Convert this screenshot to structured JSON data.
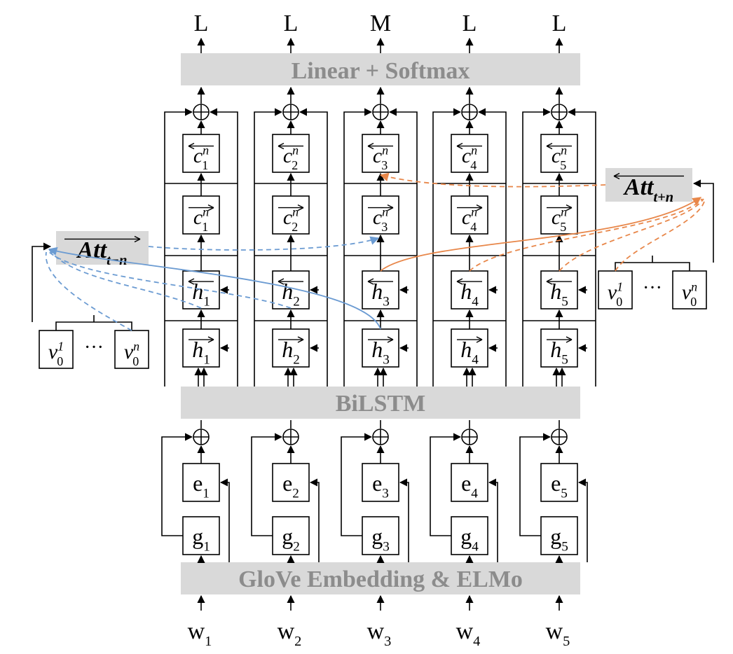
{
  "outputs": [
    "L",
    "L",
    "M",
    "L",
    "L"
  ],
  "inputs": [
    {
      "base": "w",
      "sub": "1"
    },
    {
      "base": "w",
      "sub": "2"
    },
    {
      "base": "w",
      "sub": "3"
    },
    {
      "base": "w",
      "sub": "4"
    },
    {
      "base": "w",
      "sub": "5"
    }
  ],
  "layers": {
    "softmax": "Linear + Softmax",
    "bilstm": "BiLSTM",
    "embedding": "GloVe Embedding & ELMo"
  },
  "attention": {
    "left": {
      "base": "Att",
      "sub": "t−n"
    },
    "right": {
      "base": "Att",
      "sub": "t+n"
    }
  },
  "cells": {
    "c_back": [
      {
        "base": "c",
        "sub": "1",
        "sup": "n"
      },
      {
        "base": "c",
        "sub": "2",
        "sup": "n"
      },
      {
        "base": "c",
        "sub": "3",
        "sup": "n"
      },
      {
        "base": "c",
        "sub": "4",
        "sup": "n"
      },
      {
        "base": "c",
        "sub": "5",
        "sup": "n"
      }
    ],
    "c_fwd": [
      {
        "base": "c",
        "sub": "1",
        "sup": "n"
      },
      {
        "base": "c",
        "sub": "2",
        "sup": "n"
      },
      {
        "base": "c",
        "sub": "3",
        "sup": "n"
      },
      {
        "base": "c",
        "sub": "4",
        "sup": "n"
      },
      {
        "base": "c",
        "sub": "5",
        "sup": "n"
      }
    ],
    "h_back": [
      {
        "base": "h",
        "sub": "1"
      },
      {
        "base": "h",
        "sub": "2"
      },
      {
        "base": "h",
        "sub": "3"
      },
      {
        "base": "h",
        "sub": "4"
      },
      {
        "base": "h",
        "sub": "5"
      }
    ],
    "h_fwd": [
      {
        "base": "h",
        "sub": "1"
      },
      {
        "base": "h",
        "sub": "2"
      },
      {
        "base": "h",
        "sub": "3"
      },
      {
        "base": "h",
        "sub": "4"
      },
      {
        "base": "h",
        "sub": "5"
      }
    ],
    "e": [
      {
        "base": "e",
        "sub": "1"
      },
      {
        "base": "e",
        "sub": "2"
      },
      {
        "base": "e",
        "sub": "3"
      },
      {
        "base": "e",
        "sub": "4"
      },
      {
        "base": "e",
        "sub": "5"
      }
    ],
    "g": [
      {
        "base": "g",
        "sub": "1"
      },
      {
        "base": "g",
        "sub": "2"
      },
      {
        "base": "g",
        "sub": "3"
      },
      {
        "base": "g",
        "sub": "4"
      },
      {
        "base": "g",
        "sub": "5"
      }
    ]
  },
  "context_vectors": {
    "left": [
      {
        "base": "v",
        "sub": "0",
        "sup": "1"
      },
      {
        "base": "v",
        "sub": "0",
        "sup": "n"
      }
    ],
    "right": [
      {
        "base": "v",
        "sub": "0",
        "sup": "1"
      },
      {
        "base": "v",
        "sub": "0",
        "sup": "n"
      }
    ],
    "ellipsis": "···"
  },
  "colors": {
    "bar_fill": "#d9d9d9",
    "bar_text": "#8c8c8c",
    "blue_fill": "#b4c0dd",
    "orange_fill": "#f6cfb4",
    "blue_line": "#6b9bd2",
    "orange_line": "#e8874a"
  }
}
